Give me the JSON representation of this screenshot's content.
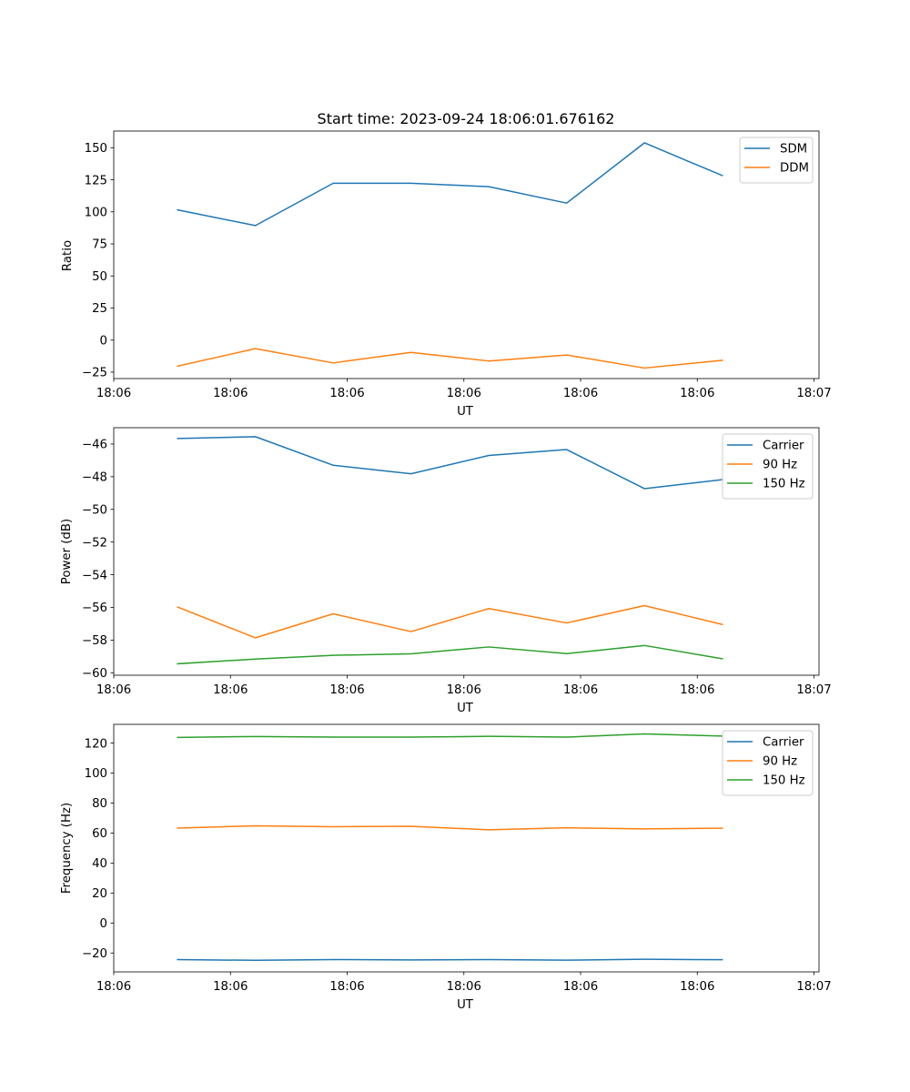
{
  "chart_data": [
    {
      "type": "line",
      "title": "Start time: 2023-09-24 18:06:01.676162",
      "xlabel": "UT",
      "ylabel": "Ratio",
      "ylim": [
        -30,
        163
      ],
      "yticks": [
        -25,
        0,
        25,
        50,
        75,
        100,
        125,
        150
      ],
      "x": [
        0.87,
        1.65,
        2.43,
        3.21,
        3.99,
        4.77,
        5.55,
        6.33
      ],
      "xlim": [
        0.23,
        7.3
      ],
      "xticks": [
        0.23,
        1.4,
        2.57,
        3.74,
        4.91,
        6.08,
        7.25
      ],
      "xtick_labels": [
        "18:06",
        "18:06",
        "18:06",
        "18:06",
        "18:06",
        "18:06",
        "18:07"
      ],
      "legend_position": "top-right",
      "series": [
        {
          "name": "SDM",
          "color": "#1f77b4",
          "values": [
            101.5,
            89.3,
            122.3,
            122.3,
            119.6,
            106.8,
            153.8,
            128.3
          ]
        },
        {
          "name": "DDM",
          "color": "#ff7f0e",
          "values": [
            -20.3,
            -6.7,
            -17.8,
            -9.6,
            -16.3,
            -11.6,
            -21.8,
            -15.8
          ]
        }
      ]
    },
    {
      "type": "line",
      "title": "",
      "xlabel": "UT",
      "ylabel": "Power (dB)",
      "ylim": [
        -60.15,
        -45.0
      ],
      "yticks": [
        -60,
        -58,
        -56,
        -54,
        -52,
        -50,
        -48,
        -46
      ],
      "x": [
        0.87,
        1.65,
        2.43,
        3.21,
        3.99,
        4.77,
        5.55,
        6.33
      ],
      "xlim": [
        0.23,
        7.3
      ],
      "xticks": [
        0.23,
        1.4,
        2.57,
        3.74,
        4.91,
        6.08,
        7.25
      ],
      "xtick_labels": [
        "18:06",
        "18:06",
        "18:06",
        "18:06",
        "18:06",
        "18:06",
        "18:07"
      ],
      "legend_position": "top-right",
      "series": [
        {
          "name": "Carrier",
          "color": "#1f77b4",
          "values": [
            -45.66,
            -45.55,
            -47.3,
            -47.82,
            -46.7,
            -46.34,
            -48.73,
            -48.18
          ]
        },
        {
          "name": "90 Hz",
          "color": "#ff7f0e",
          "values": [
            -55.98,
            -57.86,
            -56.39,
            -57.48,
            -56.07,
            -56.95,
            -55.89,
            -57.04
          ]
        },
        {
          "name": "150 Hz",
          "color": "#2ca02c",
          "values": [
            -59.45,
            -59.16,
            -58.93,
            -58.84,
            -58.42,
            -58.83,
            -58.33,
            -59.14
          ]
        }
      ]
    },
    {
      "type": "line",
      "title": "",
      "xlabel": "UT",
      "ylabel": "Frequency (Hz)",
      "ylim": [
        -32.6,
        132.5
      ],
      "yticks": [
        -20,
        0,
        20,
        40,
        60,
        80,
        100,
        120
      ],
      "x": [
        0.87,
        1.65,
        2.43,
        3.21,
        3.99,
        4.77,
        5.55,
        6.33
      ],
      "xlim": [
        0.23,
        7.3
      ],
      "xticks": [
        0.23,
        1.4,
        2.57,
        3.74,
        4.91,
        6.08,
        7.25
      ],
      "xtick_labels": [
        "18:06",
        "18:06",
        "18:06",
        "18:06",
        "18:06",
        "18:06",
        "18:07"
      ],
      "legend_position": "top-right",
      "series": [
        {
          "name": "Carrier",
          "color": "#1f77b4",
          "values": [
            -24.4,
            -24.9,
            -24.4,
            -24.6,
            -24.4,
            -24.8,
            -24.2,
            -24.5
          ]
        },
        {
          "name": "90 Hz",
          "color": "#ff7f0e",
          "values": [
            63.3,
            64.8,
            64.2,
            64.5,
            62.2,
            63.5,
            62.8,
            63.2
          ]
        },
        {
          "name": "150 Hz",
          "color": "#2ca02c",
          "values": [
            123.8,
            124.4,
            124.0,
            124.0,
            124.5,
            124.0,
            126.1,
            124.7
          ]
        }
      ]
    }
  ]
}
